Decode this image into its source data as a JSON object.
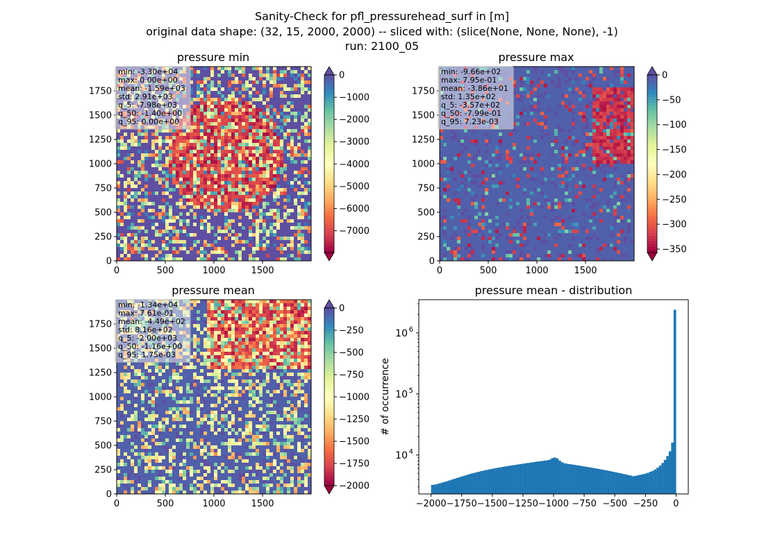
{
  "figure": {
    "suptitle": [
      "Sanity-Check for pfl_pressurehead_surf in [m]",
      "original data shape: (32, 15, 2000, 2000) -- sliced with: (slice(None, None, None), -1)",
      "run: 2100_05"
    ]
  },
  "colors": {
    "cmap_spectral": [
      "#9e0142",
      "#d53e4f",
      "#f46d43",
      "#fdae61",
      "#fee08b",
      "#ffffbf",
      "#e6f598",
      "#abdda4",
      "#66c2a5",
      "#3288bd",
      "#5e4fa2"
    ],
    "hist_bar": "#1f77b4"
  },
  "panels": [
    {
      "title": "pressure min",
      "xticks": [
        "0",
        "500",
        "1000",
        "1500"
      ],
      "yticks": [
        "0",
        "250",
        "500",
        "750",
        "1000",
        "1250",
        "1500",
        "1750"
      ],
      "stats": [
        "min: -3.30e+04",
        "max: 0.00e+00",
        "mean: -1.59e+03",
        "std: 2.91e+03",
        "q_5: -7.98e+03",
        "q_50: -1.40e+00",
        "q_95: 0.00e+00"
      ],
      "colorbar": {
        "vmin": -7980,
        "vmax": 0,
        "ticks": [
          0,
          -1000,
          -2000,
          -3000,
          -4000,
          -5000,
          -6000,
          -7000
        ],
        "ticklabels": [
          "0",
          "−1000",
          "−2000",
          "−3000",
          "−4000",
          "−5000",
          "−6000",
          "−7000"
        ],
        "extend": "both"
      }
    },
    {
      "title": "pressure max",
      "xticks": [
        "0",
        "500",
        "1000",
        "1500"
      ],
      "yticks": [
        "0",
        "250",
        "500",
        "750",
        "1000",
        "1250",
        "1500",
        "1750"
      ],
      "stats": [
        "min: -9.66e+02",
        "max: 7.95e-01",
        "mean: -3.86e+01",
        "std: 1.35e+02",
        "q_5: -3.57e+02",
        "q_50: -7.99e-01",
        "q_95: 7.23e-03"
      ],
      "colorbar": {
        "vmin": -357,
        "vmax": 0.00723,
        "ticks": [
          0,
          -50,
          -100,
          -150,
          -200,
          -250,
          -300,
          -350
        ],
        "ticklabels": [
          "0",
          "−50",
          "−100",
          "−150",
          "−200",
          "−250",
          "−300",
          "−350"
        ],
        "extend": "both"
      }
    },
    {
      "title": "pressure mean",
      "xticks": [
        "0",
        "500",
        "1000",
        "1500"
      ],
      "yticks": [
        "0",
        "250",
        "500",
        "750",
        "1000",
        "1250",
        "1500",
        "1750"
      ],
      "stats": [
        "min: -1.34e+04",
        "max: 7.61e-01",
        "mean: -4.49e+02",
        "std: 8.16e+02",
        "q_5: -2.00e+03",
        "q_50: -1.16e+00",
        "q_95: 1.75e-03"
      ],
      "colorbar": {
        "vmin": -2000,
        "vmax": 0.00175,
        "ticks": [
          0,
          -250,
          -500,
          -750,
          -1000,
          -1250,
          -1500,
          -1750,
          -2000
        ],
        "ticklabels": [
          "0",
          "−250",
          "−500",
          "−750",
          "−1000",
          "−1250",
          "−1500",
          "−1750",
          "−2000"
        ],
        "extend": "both"
      }
    }
  ],
  "chart_data": {
    "type": "bar",
    "title": "pressure mean - distribution",
    "xlabel": "",
    "ylabel": "# of occurrence",
    "yscale": "log",
    "xlim": [
      -2100,
      100
    ],
    "ylim": [
      2300,
      3500000
    ],
    "xticks": [
      -2000,
      -1750,
      -1500,
      -1250,
      -1000,
      -750,
      -500,
      -250,
      0
    ],
    "xticklabels": [
      "−2000",
      "−1750",
      "−1500",
      "−1250",
      "−1000",
      "−750",
      "−500",
      "−250",
      "0"
    ],
    "yticks": [
      10000,
      100000,
      1000000
    ],
    "yticklabels": [
      [
        "10",
        "4"
      ],
      [
        "10",
        "5"
      ],
      [
        "10",
        "6"
      ]
    ],
    "bin_width": 20,
    "x": [
      -2000,
      -1980,
      -1960,
      -1940,
      -1920,
      -1900,
      -1880,
      -1860,
      -1840,
      -1820,
      -1800,
      -1780,
      -1760,
      -1740,
      -1720,
      -1700,
      -1680,
      -1660,
      -1640,
      -1620,
      -1600,
      -1580,
      -1560,
      -1540,
      -1520,
      -1500,
      -1480,
      -1460,
      -1440,
      -1420,
      -1400,
      -1380,
      -1360,
      -1340,
      -1320,
      -1300,
      -1280,
      -1260,
      -1240,
      -1220,
      -1200,
      -1180,
      -1160,
      -1140,
      -1120,
      -1100,
      -1080,
      -1060,
      -1040,
      -1020,
      -1000,
      -980,
      -960,
      -940,
      -920,
      -900,
      -880,
      -860,
      -840,
      -820,
      -800,
      -780,
      -760,
      -740,
      -720,
      -700,
      -680,
      -660,
      -640,
      -620,
      -600,
      -580,
      -560,
      -540,
      -520,
      -500,
      -480,
      -460,
      -440,
      -420,
      -400,
      -380,
      -360,
      -340,
      -320,
      -300,
      -280,
      -260,
      -240,
      -220,
      -200,
      -180,
      -160,
      -140,
      -120,
      -100,
      -80,
      -60,
      -40,
      -20
    ],
    "values": [
      3230,
      3270,
      3340,
      3430,
      3530,
      3620,
      3720,
      3830,
      3950,
      4070,
      4190,
      4310,
      4440,
      4570,
      4700,
      4830,
      4960,
      5080,
      5200,
      5320,
      5440,
      5560,
      5670,
      5780,
      5890,
      6000,
      6100,
      6200,
      6300,
      6400,
      6500,
      6600,
      6700,
      6800,
      6900,
      7000,
      7100,
      7200,
      7300,
      7400,
      7500,
      7600,
      7700,
      7800,
      7900,
      8000,
      8100,
      8200,
      8400,
      8900,
      9100,
      8800,
      8100,
      7600,
      7300,
      7200,
      7100,
      7000,
      6900,
      6800,
      6700,
      6600,
      6500,
      6400,
      6300,
      6200,
      6100,
      6000,
      5900,
      5800,
      5700,
      5600,
      5500,
      5400,
      5300,
      5200,
      5100,
      5000,
      4900,
      4800,
      4700,
      4600,
      4500,
      4550,
      4650,
      4750,
      4850,
      4950,
      5100,
      5300,
      5500,
      5800,
      6200,
      6700,
      7400,
      8300,
      9600,
      11500,
      16000,
      2400000
    ]
  }
}
